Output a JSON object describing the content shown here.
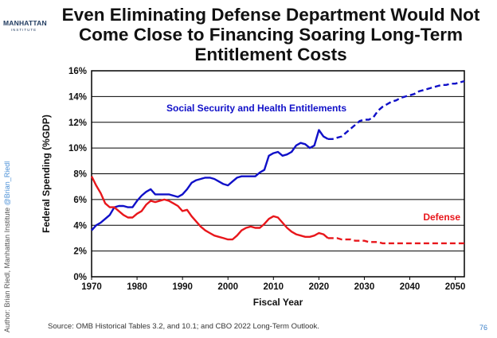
{
  "logo": {
    "name": "MANHATTAN",
    "sub": "INSTITUTE"
  },
  "title_lines": [
    "Even Eliminating Defense Department Would Not",
    "Come Close to Financing Soaring Long-Term",
    "Entitlement Costs"
  ],
  "side_credit": {
    "author": "Author: Brian Riedl, Manhattan Institute",
    "handle": "@Brian_Riedl"
  },
  "source": "Source: OMB Historical Tables 3.2, and 10.1; and CBO 2022 Long-Term Outlook.",
  "page_number": "76",
  "colors": {
    "entitlements": "#1010c8",
    "defense": "#e8161b"
  },
  "chart_data": {
    "type": "line",
    "xlabel": "Fiscal Year",
    "ylabel": "Federal Spending (%GDP)",
    "xlim": [
      1970,
      2052
    ],
    "ylim": [
      0,
      16
    ],
    "x_ticks": [
      "1970",
      "1980",
      "1990",
      "2000",
      "2010",
      "2020",
      "2030",
      "2040",
      "2050"
    ],
    "y_ticks": [
      "0%",
      "2%",
      "4%",
      "6%",
      "8%",
      "10%",
      "12%",
      "14%",
      "16%"
    ],
    "grid": "horizontal",
    "series": [
      {
        "name": "Social Security and Health Entitlements",
        "color": "#1010c8",
        "historical": [
          [
            1970,
            3.6
          ],
          [
            1971,
            4.0
          ],
          [
            1972,
            4.2
          ],
          [
            1973,
            4.5
          ],
          [
            1974,
            4.8
          ],
          [
            1975,
            5.4
          ],
          [
            1976,
            5.5
          ],
          [
            1977,
            5.5
          ],
          [
            1978,
            5.4
          ],
          [
            1979,
            5.4
          ],
          [
            1980,
            5.9
          ],
          [
            1981,
            6.3
          ],
          [
            1982,
            6.6
          ],
          [
            1983,
            6.8
          ],
          [
            1984,
            6.4
          ],
          [
            1985,
            6.4
          ],
          [
            1986,
            6.4
          ],
          [
            1987,
            6.4
          ],
          [
            1988,
            6.3
          ],
          [
            1989,
            6.2
          ],
          [
            1990,
            6.4
          ],
          [
            1991,
            6.8
          ],
          [
            1992,
            7.3
          ],
          [
            1993,
            7.5
          ],
          [
            1994,
            7.6
          ],
          [
            1995,
            7.7
          ],
          [
            1996,
            7.7
          ],
          [
            1997,
            7.6
          ],
          [
            1998,
            7.4
          ],
          [
            1999,
            7.2
          ],
          [
            2000,
            7.1
          ],
          [
            2001,
            7.4
          ],
          [
            2002,
            7.7
          ],
          [
            2003,
            7.8
          ],
          [
            2004,
            7.8
          ],
          [
            2005,
            7.8
          ],
          [
            2006,
            7.8
          ],
          [
            2007,
            8.1
          ],
          [
            2008,
            8.3
          ],
          [
            2009,
            9.4
          ],
          [
            2010,
            9.6
          ],
          [
            2011,
            9.7
          ],
          [
            2012,
            9.4
          ],
          [
            2013,
            9.5
          ],
          [
            2014,
            9.7
          ],
          [
            2015,
            10.2
          ],
          [
            2016,
            10.4
          ],
          [
            2017,
            10.3
          ],
          [
            2018,
            10.0
          ],
          [
            2019,
            10.2
          ],
          [
            2020,
            11.4
          ],
          [
            2021,
            10.9
          ],
          [
            2022,
            10.7
          ]
        ],
        "projected": [
          [
            2022,
            10.7
          ],
          [
            2023,
            10.7
          ],
          [
            2024,
            10.8
          ],
          [
            2025,
            10.9
          ],
          [
            2026,
            11.2
          ],
          [
            2027,
            11.5
          ],
          [
            2028,
            11.8
          ],
          [
            2029,
            12.1
          ],
          [
            2030,
            12.2
          ],
          [
            2031,
            12.2
          ],
          [
            2032,
            12.4
          ],
          [
            2033,
            12.9
          ],
          [
            2034,
            13.2
          ],
          [
            2035,
            13.4
          ],
          [
            2036,
            13.6
          ],
          [
            2037,
            13.7
          ],
          [
            2038,
            13.9
          ],
          [
            2039,
            14.0
          ],
          [
            2040,
            14.1
          ],
          [
            2041,
            14.2
          ],
          [
            2042,
            14.4
          ],
          [
            2043,
            14.5
          ],
          [
            2044,
            14.6
          ],
          [
            2045,
            14.7
          ],
          [
            2046,
            14.8
          ],
          [
            2047,
            14.9
          ],
          [
            2048,
            14.9
          ],
          [
            2049,
            15.0
          ],
          [
            2050,
            15.0
          ],
          [
            2051,
            15.1
          ],
          [
            2052,
            15.2
          ]
        ]
      },
      {
        "name": "Defense",
        "color": "#e8161b",
        "historical": [
          [
            1970,
            7.8
          ],
          [
            1971,
            7.1
          ],
          [
            1972,
            6.5
          ],
          [
            1973,
            5.7
          ],
          [
            1974,
            5.4
          ],
          [
            1975,
            5.4
          ],
          [
            1976,
            5.1
          ],
          [
            1977,
            4.8
          ],
          [
            1978,
            4.6
          ],
          [
            1979,
            4.6
          ],
          [
            1980,
            4.9
          ],
          [
            1981,
            5.1
          ],
          [
            1982,
            5.6
          ],
          [
            1983,
            5.9
          ],
          [
            1984,
            5.8
          ],
          [
            1985,
            5.9
          ],
          [
            1986,
            6.0
          ],
          [
            1987,
            5.9
          ],
          [
            1988,
            5.7
          ],
          [
            1989,
            5.5
          ],
          [
            1990,
            5.1
          ],
          [
            1991,
            5.2
          ],
          [
            1992,
            4.7
          ],
          [
            1993,
            4.3
          ],
          [
            1994,
            3.9
          ],
          [
            1995,
            3.6
          ],
          [
            1996,
            3.4
          ],
          [
            1997,
            3.2
          ],
          [
            1998,
            3.1
          ],
          [
            1999,
            3.0
          ],
          [
            2000,
            2.9
          ],
          [
            2001,
            2.9
          ],
          [
            2002,
            3.2
          ],
          [
            2003,
            3.6
          ],
          [
            2004,
            3.8
          ],
          [
            2005,
            3.9
          ],
          [
            2006,
            3.8
          ],
          [
            2007,
            3.8
          ],
          [
            2008,
            4.1
          ],
          [
            2009,
            4.5
          ],
          [
            2010,
            4.7
          ],
          [
            2011,
            4.6
          ],
          [
            2012,
            4.2
          ],
          [
            2013,
            3.8
          ],
          [
            2014,
            3.5
          ],
          [
            2015,
            3.3
          ],
          [
            2016,
            3.2
          ],
          [
            2017,
            3.1
          ],
          [
            2018,
            3.1
          ],
          [
            2019,
            3.2
          ],
          [
            2020,
            3.4
          ],
          [
            2021,
            3.3
          ],
          [
            2022,
            3.0
          ]
        ],
        "projected": [
          [
            2022,
            3.0
          ],
          [
            2023,
            3.0
          ],
          [
            2024,
            3.0
          ],
          [
            2025,
            2.9
          ],
          [
            2026,
            2.9
          ],
          [
            2027,
            2.9
          ],
          [
            2028,
            2.8
          ],
          [
            2029,
            2.8
          ],
          [
            2030,
            2.8
          ],
          [
            2031,
            2.7
          ],
          [
            2032,
            2.7
          ],
          [
            2033,
            2.7
          ],
          [
            2034,
            2.6
          ],
          [
            2035,
            2.6
          ],
          [
            2036,
            2.6
          ],
          [
            2037,
            2.6
          ],
          [
            2038,
            2.6
          ],
          [
            2039,
            2.6
          ],
          [
            2040,
            2.6
          ],
          [
            2041,
            2.6
          ],
          [
            2042,
            2.6
          ],
          [
            2043,
            2.6
          ],
          [
            2044,
            2.6
          ],
          [
            2045,
            2.6
          ],
          [
            2046,
            2.6
          ],
          [
            2047,
            2.6
          ],
          [
            2048,
            2.6
          ],
          [
            2049,
            2.6
          ],
          [
            2050,
            2.6
          ],
          [
            2051,
            2.6
          ],
          [
            2052,
            2.6
          ]
        ]
      }
    ]
  }
}
